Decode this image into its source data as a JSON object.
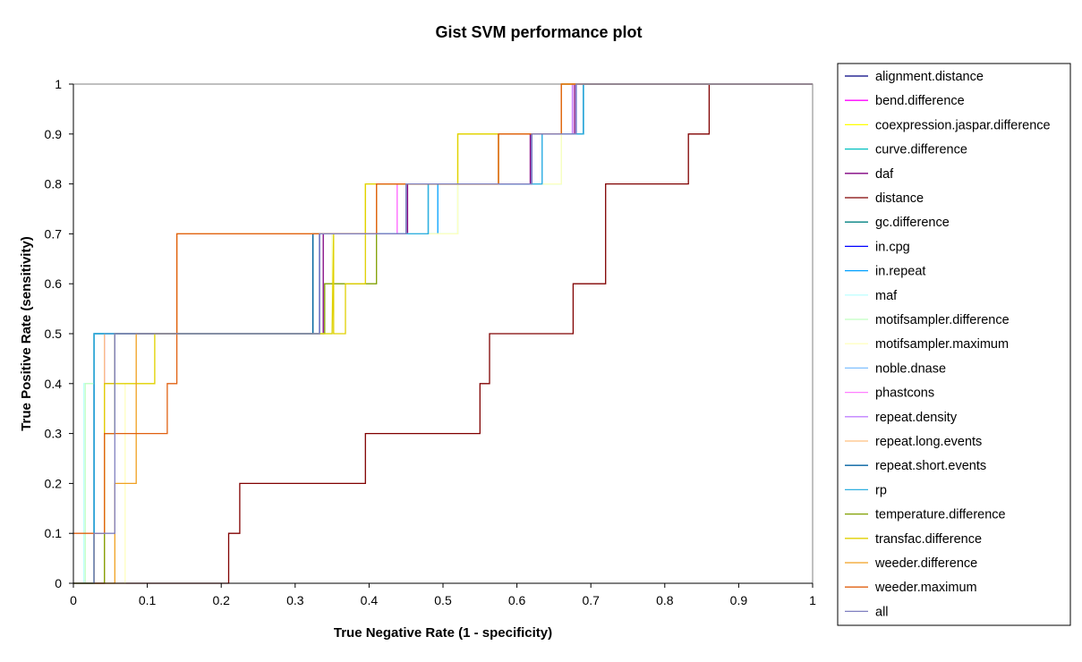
{
  "chart_data": {
    "type": "line",
    "title": "Gist SVM performance plot",
    "xlabel": "True Negative Rate (1 - specificity)",
    "ylabel": "True Positive Rate (sensitivity)",
    "xlim": [
      0,
      1
    ],
    "ylim": [
      0,
      1
    ],
    "x_ticks": [
      "0",
      "0.1",
      "0.2",
      "0.3",
      "0.4",
      "0.5",
      "0.6",
      "0.7",
      "0.8",
      "0.9",
      "1"
    ],
    "y_ticks": [
      "0",
      "0.1",
      "0.2",
      "0.3",
      "0.4",
      "0.5",
      "0.6",
      "0.7",
      "0.8",
      "0.9",
      "1"
    ],
    "grid": false,
    "legend_position": "right",
    "series": [
      {
        "name": "alignment.distance",
        "color": "#000080",
        "x": [
          0,
          0.028,
          0.028,
          0.333,
          0.333,
          0.45,
          0.45,
          0.62,
          0.62,
          0.68,
          0.68,
          1
        ],
        "y": [
          0,
          0,
          0.5,
          0.5,
          0.7,
          0.7,
          0.8,
          0.8,
          0.9,
          0.9,
          1,
          1
        ]
      },
      {
        "name": "bend.difference",
        "color": "#ff00ff",
        "x": [
          0,
          0.042,
          0.042,
          0.333,
          0.333,
          0.438,
          0.438,
          0.62,
          0.62,
          0.675,
          0.675,
          1
        ],
        "y": [
          0,
          0,
          0.5,
          0.5,
          0.7,
          0.7,
          0.8,
          0.8,
          0.9,
          0.9,
          1,
          1
        ]
      },
      {
        "name": "coexpression.jaspar.difference",
        "color": "#ffff00",
        "x": [
          0,
          0.028,
          0.028,
          0.333,
          0.333,
          0.395,
          0.395,
          0.52,
          0.52,
          0.66,
          0.66,
          1
        ],
        "y": [
          0,
          0,
          0.5,
          0.5,
          0.7,
          0.7,
          0.8,
          0.8,
          0.9,
          0.9,
          1,
          1
        ]
      },
      {
        "name": "curve.difference",
        "color": "#00c0c0",
        "x": [
          0,
          0.028,
          0.028,
          0.333,
          0.333,
          0.48,
          0.48,
          0.634,
          0.634,
          0.69,
          0.69,
          1
        ],
        "y": [
          0,
          0,
          0.5,
          0.5,
          0.7,
          0.7,
          0.8,
          0.8,
          0.9,
          0.9,
          1,
          1
        ]
      },
      {
        "name": "daf",
        "color": "#800080",
        "x": [
          0,
          0.042,
          0.042,
          0.056,
          0.056,
          0.338,
          0.338,
          0.452,
          0.452,
          0.618,
          0.618,
          0.678,
          0.678,
          1
        ],
        "y": [
          0,
          0,
          0.4,
          0.4,
          0.5,
          0.5,
          0.7,
          0.7,
          0.8,
          0.8,
          0.9,
          0.9,
          1,
          1
        ]
      },
      {
        "name": "distance",
        "color": "#800000",
        "x": [
          0,
          0.21,
          0.21,
          0.225,
          0.225,
          0.395,
          0.395,
          0.55,
          0.55,
          0.563,
          0.563,
          0.676,
          0.676,
          0.72,
          0.72,
          0.832,
          0.832,
          0.86,
          0.86,
          1
        ],
        "y": [
          0,
          0,
          0.1,
          0.1,
          0.2,
          0.2,
          0.3,
          0.3,
          0.4,
          0.4,
          0.5,
          0.5,
          0.6,
          0.6,
          0.8,
          0.8,
          0.9,
          0.9,
          1,
          1
        ]
      },
      {
        "name": "gc.difference",
        "color": "#008080",
        "x": [
          0,
          0.028,
          0.028,
          0.324,
          0.324,
          0.45,
          0.45,
          0.62,
          0.62,
          0.69,
          0.69,
          1
        ],
        "y": [
          0,
          0,
          0.5,
          0.5,
          0.7,
          0.7,
          0.8,
          0.8,
          0.9,
          0.9,
          1,
          1
        ]
      },
      {
        "name": "in.cpg",
        "color": "#0000ff",
        "x": [
          0,
          0.028,
          0.028,
          0.333,
          0.333,
          0.45,
          0.45,
          0.62,
          0.62,
          0.68,
          0.68,
          1
        ],
        "y": [
          0,
          0,
          0.5,
          0.5,
          0.7,
          0.7,
          0.8,
          0.8,
          0.9,
          0.9,
          1,
          1
        ]
      },
      {
        "name": "in.repeat",
        "color": "#00a0ff",
        "x": [
          0,
          0.028,
          0.028,
          0.333,
          0.333,
          0.493,
          0.493,
          0.634,
          0.634,
          0.69,
          0.69,
          1
        ],
        "y": [
          0,
          0,
          0.5,
          0.5,
          0.7,
          0.7,
          0.8,
          0.8,
          0.9,
          0.9,
          1,
          1
        ]
      },
      {
        "name": "maf",
        "color": "#c0ffff",
        "x": [
          0,
          0.014,
          0.014,
          0.028,
          0.028,
          0.35,
          0.35,
          0.52,
          0.52,
          0.66,
          0.66,
          1
        ],
        "y": [
          0,
          0,
          0.4,
          0.4,
          0.5,
          0.5,
          0.7,
          0.7,
          0.8,
          0.8,
          1,
          1
        ]
      },
      {
        "name": "motifsampler.difference",
        "color": "#c0ffc0",
        "x": [
          0,
          0.016,
          0.016,
          0.028,
          0.028,
          0.35,
          0.35,
          0.52,
          0.52,
          0.66,
          0.66,
          1
        ],
        "y": [
          0,
          0,
          0.4,
          0.4,
          0.5,
          0.5,
          0.7,
          0.7,
          0.8,
          0.8,
          1,
          1
        ]
      },
      {
        "name": "motifsampler.maximum",
        "color": "#ffffc0",
        "x": [
          0,
          0.07,
          0.07,
          0.11,
          0.11,
          0.35,
          0.35,
          0.52,
          0.52,
          0.66,
          0.66,
          1
        ],
        "y": [
          0,
          0,
          0.4,
          0.4,
          0.5,
          0.5,
          0.7,
          0.7,
          0.8,
          0.8,
          1,
          1
        ]
      },
      {
        "name": "noble.dnase",
        "color": "#80c0ff",
        "x": [
          0,
          0.028,
          0.028,
          0.333,
          0.333,
          0.48,
          0.48,
          0.634,
          0.634,
          0.69,
          0.69,
          1
        ],
        "y": [
          0,
          0,
          0.5,
          0.5,
          0.7,
          0.7,
          0.8,
          0.8,
          0.9,
          0.9,
          1,
          1
        ]
      },
      {
        "name": "phastcons",
        "color": "#ff80ff",
        "x": [
          0,
          0.042,
          0.042,
          0.333,
          0.333,
          0.438,
          0.438,
          0.62,
          0.62,
          0.675,
          0.675,
          1
        ],
        "y": [
          0,
          0,
          0.5,
          0.5,
          0.7,
          0.7,
          0.8,
          0.8,
          0.9,
          0.9,
          1,
          1
        ]
      },
      {
        "name": "repeat.density",
        "color": "#c080ff",
        "x": [
          0,
          0.042,
          0.042,
          0.333,
          0.333,
          0.45,
          0.45,
          0.62,
          0.62,
          0.675,
          0.675,
          1
        ],
        "y": [
          0,
          0,
          0.5,
          0.5,
          0.7,
          0.7,
          0.8,
          0.8,
          0.9,
          0.9,
          1,
          1
        ]
      },
      {
        "name": "repeat.long.events",
        "color": "#ffc080",
        "x": [
          0,
          0.042,
          0.042,
          0.14,
          0.14,
          0.41,
          0.41,
          0.575,
          0.575,
          0.66,
          0.66,
          1
        ],
        "y": [
          0,
          0,
          0.5,
          0.5,
          0.7,
          0.7,
          0.8,
          0.8,
          0.9,
          0.9,
          1,
          1
        ]
      },
      {
        "name": "repeat.short.events",
        "color": "#0060a0",
        "x": [
          0,
          0.028,
          0.028,
          0.324,
          0.324,
          0.45,
          0.45,
          0.62,
          0.62,
          0.69,
          0.69,
          1
        ],
        "y": [
          0,
          0,
          0.5,
          0.5,
          0.7,
          0.7,
          0.8,
          0.8,
          0.9,
          0.9,
          1,
          1
        ]
      },
      {
        "name": "rp",
        "color": "#30b0e0",
        "x": [
          0,
          0.028,
          0.028,
          0.333,
          0.333,
          0.48,
          0.48,
          0.634,
          0.634,
          0.69,
          0.69,
          1
        ],
        "y": [
          0,
          0,
          0.5,
          0.5,
          0.7,
          0.7,
          0.8,
          0.8,
          0.9,
          0.9,
          1,
          1
        ]
      },
      {
        "name": "temperature.difference",
        "color": "#80a000",
        "x": [
          0,
          0.042,
          0.042,
          0.056,
          0.056,
          0.34,
          0.34,
          0.41,
          0.41,
          0.575,
          0.575,
          0.66,
          0.66,
          1
        ],
        "y": [
          0,
          0,
          0.3,
          0.3,
          0.5,
          0.5,
          0.6,
          0.6,
          0.8,
          0.8,
          0.9,
          0.9,
          1,
          1
        ]
      },
      {
        "name": "transfac.difference",
        "color": "#e0d000",
        "x": [
          0,
          0.028,
          0.028,
          0.042,
          0.042,
          0.07,
          0.07,
          0.11,
          0.11,
          0.35,
          0.35,
          0.352,
          0.352,
          0.368,
          0.368,
          0.395,
          0.395,
          0.52,
          0.52,
          0.66,
          0.66,
          1
        ],
        "y": [
          0,
          0,
          0.1,
          0.1,
          0.4,
          0.4,
          0.4,
          0.4,
          0.5,
          0.5,
          0.5,
          0.7,
          0.5,
          0.5,
          0.6,
          0.6,
          0.8,
          0.8,
          0.9,
          0.9,
          1,
          1
        ]
      },
      {
        "name": "weeder.difference",
        "color": "#f0a020",
        "x": [
          0,
          0.056,
          0.056,
          0.085,
          0.085,
          0.14,
          0.14,
          0.41,
          0.41,
          0.575,
          0.575,
          0.66,
          0.66,
          1
        ],
        "y": [
          0,
          0,
          0.2,
          0.2,
          0.5,
          0.5,
          0.7,
          0.7,
          0.8,
          0.8,
          0.9,
          0.9,
          1,
          1
        ]
      },
      {
        "name": "weeder.maximum",
        "color": "#e06010",
        "x": [
          0,
          0.042,
          0.042,
          0.127,
          0.127,
          0.14,
          0.14,
          0.41,
          0.41,
          0.575,
          0.575,
          0.66,
          0.66,
          1
        ],
        "y": [
          0.1,
          0.1,
          0.3,
          0.3,
          0.4,
          0.4,
          0.7,
          0.7,
          0.8,
          0.8,
          0.9,
          0.9,
          1,
          1
        ]
      },
      {
        "name": "all",
        "color": "#8080c0",
        "x": [
          0,
          0.028,
          0.028,
          0.056,
          0.056,
          0.333,
          0.333,
          0.45,
          0.45,
          0.62,
          0.62,
          0.68,
          0.68,
          1
        ],
        "y": [
          0,
          0,
          0.1,
          0.1,
          0.5,
          0.5,
          0.7,
          0.7,
          0.8,
          0.8,
          0.9,
          0.9,
          1,
          1
        ]
      }
    ]
  }
}
